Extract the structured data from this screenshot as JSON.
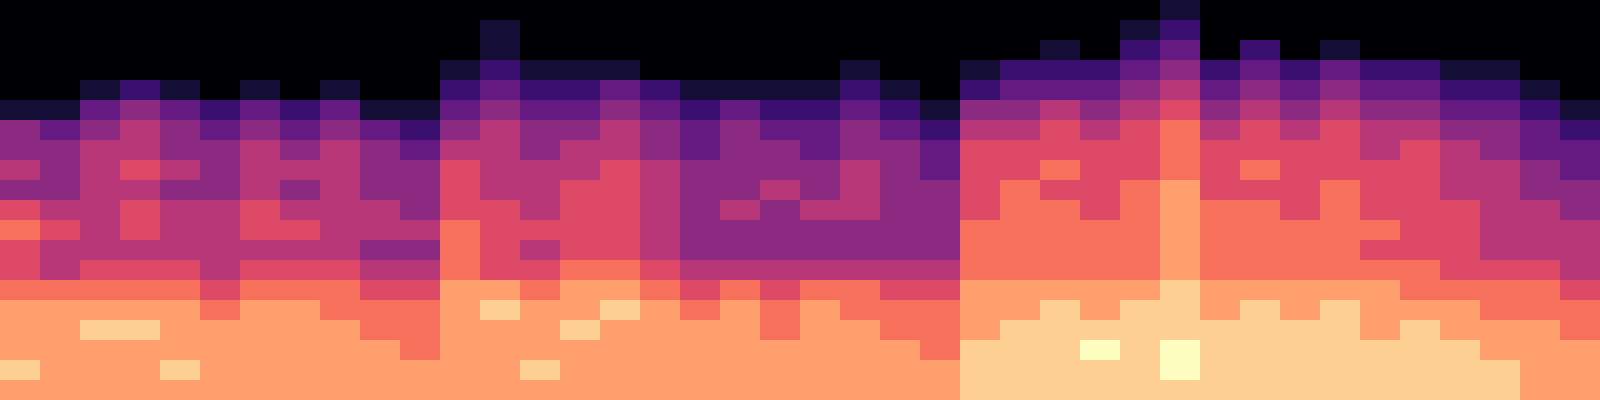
{
  "chart_data": {
    "type": "heatmap",
    "color": "magma",
    "zlim": [
      0,
      10
    ],
    "tick_labels": false,
    "cells": [
      [
        0,
        0,
        0,
        0,
        0,
        0,
        0,
        0,
        0,
        0,
        0,
        0,
        0,
        0,
        0,
        0,
        0,
        0,
        0,
        0,
        0,
        0,
        0,
        0,
        0,
        0,
        0,
        0,
        0,
        1,
        0,
        0,
        0,
        0,
        0,
        0,
        0,
        0,
        0,
        0
      ],
      [
        0,
        0,
        0,
        0,
        0,
        0,
        0,
        0,
        0,
        0,
        0,
        0,
        1,
        0,
        0,
        0,
        0,
        0,
        0,
        0,
        0,
        0,
        0,
        0,
        0,
        0,
        0,
        0,
        1,
        2,
        0,
        0,
        0,
        0,
        0,
        0,
        0,
        0,
        0,
        0
      ],
      [
        0,
        0,
        0,
        0,
        0,
        0,
        0,
        0,
        0,
        0,
        0,
        0,
        1,
        0,
        0,
        0,
        0,
        0,
        0,
        0,
        0,
        0,
        0,
        0,
        0,
        0,
        1,
        0,
        2,
        3,
        0,
        2,
        0,
        1,
        0,
        0,
        0,
        0,
        0,
        0
      ],
      [
        0,
        0,
        0,
        0,
        0,
        0,
        0,
        0,
        0,
        0,
        0,
        1,
        2,
        1,
        1,
        1,
        0,
        0,
        0,
        0,
        0,
        1,
        0,
        0,
        1,
        2,
        2,
        2,
        3,
        4,
        2,
        3,
        2,
        3,
        2,
        2,
        1,
        1,
        0,
        0
      ],
      [
        0,
        0,
        1,
        2,
        1,
        0,
        1,
        0,
        1,
        0,
        0,
        2,
        3,
        2,
        2,
        3,
        2,
        1,
        1,
        1,
        1,
        2,
        1,
        0,
        2,
        3,
        3,
        3,
        4,
        5,
        3,
        4,
        3,
        4,
        3,
        3,
        2,
        2,
        1,
        0
      ],
      [
        1,
        1,
        3,
        4,
        3,
        2,
        3,
        2,
        3,
        1,
        1,
        3,
        4,
        3,
        3,
        4,
        3,
        2,
        3,
        2,
        2,
        3,
        2,
        1,
        4,
        4,
        5,
        4,
        5,
        6,
        4,
        5,
        4,
        5,
        4,
        4,
        3,
        3,
        2,
        1
      ],
      [
        4,
        3,
        4,
        5,
        4,
        3,
        4,
        3,
        4,
        3,
        2,
        4,
        5,
        4,
        4,
        5,
        4,
        3,
        4,
        3,
        3,
        4,
        3,
        2,
        5,
        5,
        6,
        5,
        6,
        7,
        5,
        6,
        5,
        6,
        5,
        5,
        4,
        4,
        3,
        2
      ],
      [
        4,
        4,
        5,
        5,
        4,
        4,
        5,
        4,
        5,
        4,
        3,
        5,
        5,
        4,
        5,
        5,
        4,
        3,
        4,
        4,
        3,
        4,
        4,
        3,
        6,
        6,
        6,
        6,
        6,
        7,
        6,
        6,
        6,
        6,
        5,
        6,
        5,
        4,
        3,
        3
      ],
      [
        5,
        4,
        5,
        6,
        5,
        4,
        5,
        5,
        5,
        4,
        4,
        6,
        5,
        5,
        5,
        6,
        5,
        4,
        4,
        4,
        4,
        5,
        4,
        3,
        6,
        6,
        7,
        6,
        6,
        7,
        6,
        7,
        6,
        6,
        6,
        6,
        5,
        5,
        4,
        3
      ],
      [
        4,
        4,
        5,
        5,
        4,
        4,
        5,
        4,
        5,
        4,
        4,
        6,
        5,
        5,
        6,
        6,
        5,
        4,
        4,
        5,
        4,
        5,
        4,
        4,
        6,
        7,
        6,
        6,
        7,
        8,
        6,
        6,
        6,
        7,
        6,
        6,
        5,
        5,
        4,
        4
      ],
      [
        6,
        5,
        5,
        6,
        5,
        5,
        6,
        5,
        5,
        5,
        4,
        6,
        6,
        5,
        6,
        6,
        5,
        4,
        5,
        4,
        5,
        5,
        4,
        4,
        6,
        7,
        7,
        6,
        7,
        8,
        7,
        7,
        6,
        7,
        6,
        6,
        6,
        5,
        5,
        4
      ],
      [
        7,
        6,
        5,
        6,
        5,
        5,
        6,
        6,
        5,
        5,
        5,
        7,
        6,
        6,
        6,
        6,
        5,
        4,
        4,
        4,
        4,
        4,
        4,
        4,
        7,
        7,
        7,
        7,
        7,
        8,
        7,
        7,
        7,
        7,
        7,
        6,
        6,
        5,
        5,
        5
      ],
      [
        6,
        5,
        5,
        5,
        5,
        5,
        5,
        5,
        5,
        4,
        4,
        7,
        6,
        5,
        6,
        6,
        5,
        4,
        4,
        4,
        4,
        4,
        4,
        4,
        7,
        7,
        7,
        7,
        7,
        8,
        7,
        7,
        7,
        7,
        6,
        6,
        6,
        5,
        5,
        5
      ],
      [
        6,
        5,
        6,
        6,
        6,
        5,
        6,
        6,
        6,
        5,
        5,
        7,
        6,
        6,
        7,
        7,
        6,
        5,
        5,
        5,
        5,
        5,
        5,
        5,
        7,
        7,
        7,
        7,
        7,
        8,
        7,
        7,
        7,
        7,
        7,
        7,
        6,
        6,
        6,
        5
      ],
      [
        7,
        7,
        7,
        7,
        7,
        6,
        7,
        7,
        7,
        6,
        6,
        8,
        8,
        7,
        8,
        8,
        7,
        6,
        7,
        6,
        7,
        7,
        6,
        6,
        8,
        8,
        8,
        8,
        8,
        9,
        8,
        8,
        8,
        8,
        8,
        7,
        7,
        7,
        7,
        6
      ],
      [
        8,
        8,
        8,
        8,
        8,
        7,
        8,
        8,
        7,
        7,
        7,
        8,
        9,
        8,
        8,
        9,
        8,
        7,
        8,
        7,
        8,
        7,
        7,
        7,
        8,
        8,
        9,
        8,
        9,
        9,
        8,
        9,
        8,
        9,
        8,
        8,
        8,
        7,
        7,
        7
      ],
      [
        8,
        8,
        9,
        9,
        8,
        8,
        8,
        8,
        8,
        7,
        7,
        8,
        8,
        8,
        9,
        8,
        8,
        8,
        8,
        7,
        8,
        8,
        7,
        7,
        8,
        9,
        9,
        9,
        9,
        9,
        9,
        9,
        9,
        9,
        8,
        9,
        8,
        8,
        8,
        7
      ],
      [
        8,
        8,
        8,
        8,
        8,
        8,
        8,
        8,
        8,
        8,
        7,
        8,
        8,
        8,
        8,
        8,
        8,
        8,
        8,
        8,
        8,
        8,
        8,
        7,
        9,
        9,
        9,
        10,
        9,
        10,
        9,
        9,
        9,
        9,
        9,
        9,
        9,
        8,
        8,
        8
      ],
      [
        9,
        8,
        8,
        8,
        9,
        8,
        8,
        8,
        8,
        8,
        8,
        8,
        8,
        9,
        8,
        8,
        8,
        8,
        8,
        8,
        8,
        8,
        8,
        8,
        9,
        9,
        9,
        9,
        9,
        10,
        9,
        9,
        9,
        9,
        9,
        9,
        9,
        9,
        8,
        8
      ],
      [
        8,
        8,
        8,
        8,
        8,
        8,
        8,
        8,
        8,
        8,
        8,
        8,
        8,
        8,
        8,
        8,
        8,
        8,
        8,
        8,
        8,
        8,
        8,
        8,
        9,
        9,
        9,
        9,
        9,
        9,
        9,
        9,
        9,
        9,
        9,
        9,
        9,
        9,
        8,
        8
      ]
    ]
  }
}
